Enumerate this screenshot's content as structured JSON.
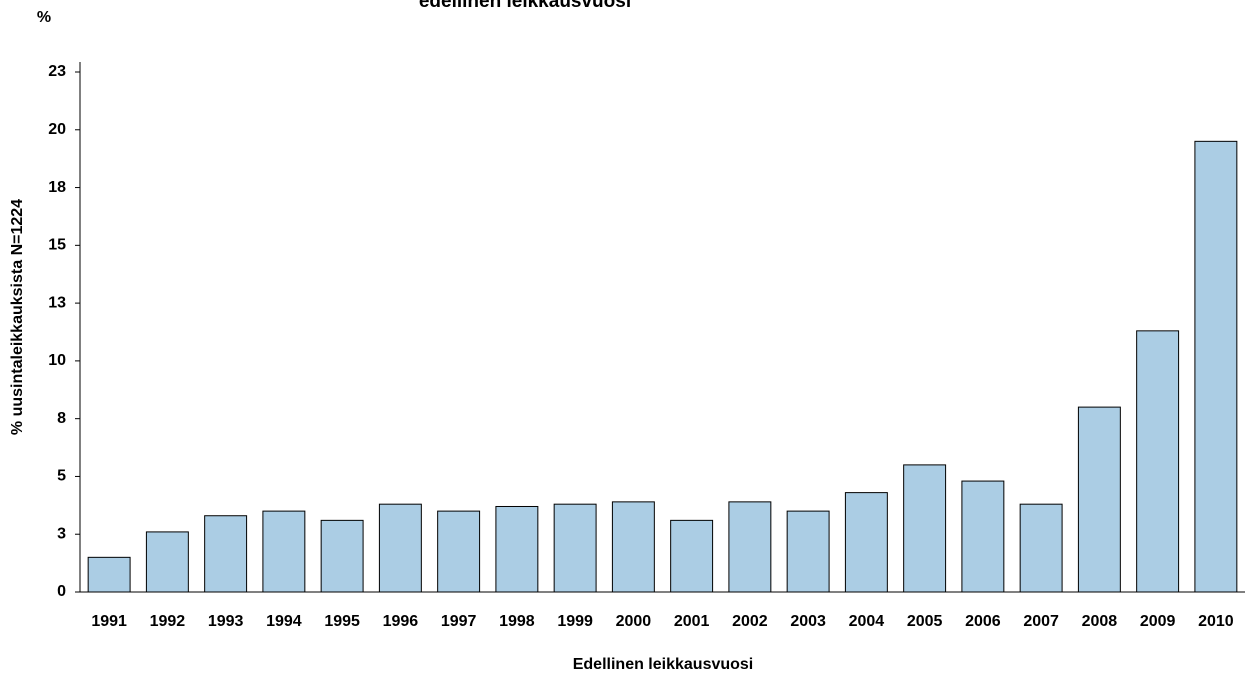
{
  "chart_data": {
    "type": "bar",
    "title": "edellinen leikkausvuosi",
    "y_unit": "%",
    "y_label": "% uusintaleikkauksista  N=1224",
    "x_label": "Edellinen leikkausvuosi",
    "categories": [
      "1991",
      "1992",
      "1993",
      "1994",
      "1995",
      "1996",
      "1997",
      "1998",
      "1999",
      "2000",
      "2001",
      "2002",
      "2003",
      "2004",
      "2005",
      "2006",
      "2007",
      "2008",
      "2009",
      "2010"
    ],
    "values": [
      1.5,
      2.6,
      3.3,
      3.5,
      3.1,
      3.8,
      3.5,
      3.7,
      3.8,
      3.9,
      3.1,
      3.9,
      3.5,
      4.3,
      5.5,
      4.8,
      3.8,
      8.0,
      11.3,
      19.5
    ],
    "color": "#abcde4",
    "ylim": [
      0,
      22.5
    ],
    "yticks": [
      0,
      {
        "value": 2.5,
        "label": "3"
      },
      5,
      {
        "value": 7.5,
        "label": "8"
      },
      10,
      {
        "value": 12.5,
        "label": "13"
      },
      15,
      {
        "value": 17.5,
        "label": "18"
      },
      20,
      {
        "value": 22.5,
        "label": "23"
      }
    ],
    "grid": false
  }
}
